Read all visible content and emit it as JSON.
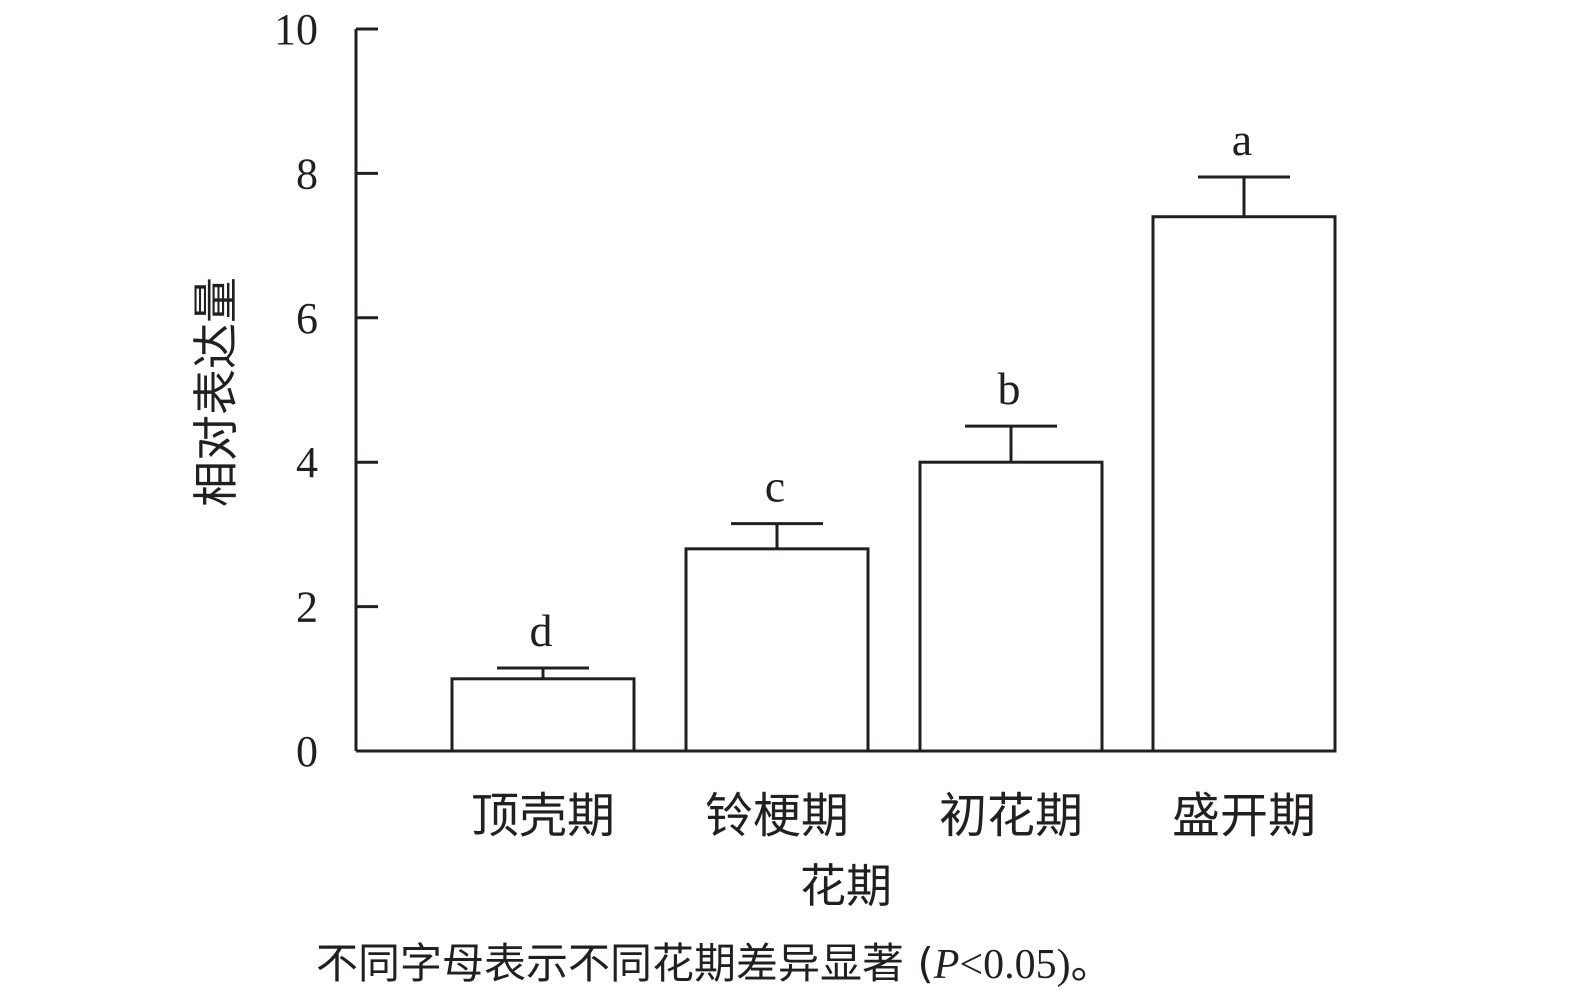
{
  "chart_data": {
    "type": "bar",
    "categories": [
      "顶壳期",
      "铃梗期",
      "初花期",
      "盛开期"
    ],
    "values": [
      1.0,
      2.8,
      4.0,
      7.4
    ],
    "error_upper": [
      1.15,
      3.15,
      4.5,
      7.95
    ],
    "significance_letters": [
      "d",
      "c",
      "b",
      "a"
    ],
    "title": "",
    "xlabel": "花期",
    "ylabel": "相对表达量",
    "ylim": [
      0,
      10
    ],
    "yticks": [
      "0",
      "2",
      "4",
      "6",
      "8",
      "10"
    ],
    "grid": false,
    "bar_fill": "#ffffff",
    "stroke_color": "#231f20"
  },
  "footnote": {
    "text_before": "不同字母表示不同花期差异显著 (",
    "italic_p": "P",
    "text_after": "<0.05)。"
  }
}
